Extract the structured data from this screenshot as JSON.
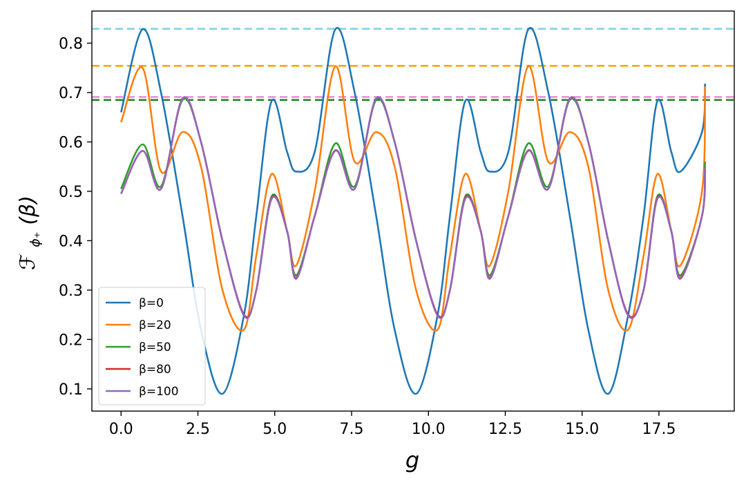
{
  "chart_data": {
    "type": "line",
    "title": "",
    "xlabel": "g",
    "ylabel_parts": {
      "main": "ℱ",
      "sub": "ϕ₊",
      "arg": "(β)"
    },
    "xlim": [
      -0.95,
      19.95
    ],
    "ylim": [
      0.055,
      0.865
    ],
    "xticks": [
      0.0,
      2.5,
      5.0,
      7.5,
      10.0,
      12.5,
      15.0,
      17.5
    ],
    "xtick_labels": [
      "0.0",
      "2.5",
      "5.0",
      "7.5",
      "10.0",
      "12.5",
      "15.0",
      "17.5"
    ],
    "yticks": [
      0.1,
      0.2,
      0.3,
      0.4,
      0.5,
      0.6,
      0.7,
      0.8
    ],
    "ytick_labels": [
      "0.1",
      "0.2",
      "0.3",
      "0.4",
      "0.5",
      "0.6",
      "0.7",
      "0.8"
    ],
    "grid": false,
    "legend_position": "lower-left",
    "x": [
      0.0,
      0.7,
      1.3,
      2.0,
      2.6,
      3.3,
      4.0,
      4.4,
      4.9,
      5.4,
      5.7,
      6.3,
      6.97,
      7.6,
      8.3,
      8.9,
      9.6,
      10.3,
      10.7,
      11.2,
      11.7,
      12.0,
      12.6,
      13.25,
      13.9,
      14.6,
      15.2,
      15.85,
      16.5,
      17.0,
      17.45,
      17.9,
      18.2,
      18.9,
      19.0
    ],
    "series": [
      {
        "name": "β=0",
        "color": "#1f77b4",
        "values": [
          0.66,
          0.828,
          0.7,
          0.45,
          0.22,
          0.09,
          0.25,
          0.45,
          0.683,
          0.58,
          0.54,
          0.58,
          0.828,
          0.7,
          0.45,
          0.22,
          0.09,
          0.25,
          0.45,
          0.683,
          0.58,
          0.54,
          0.58,
          0.828,
          0.7,
          0.45,
          0.22,
          0.09,
          0.25,
          0.45,
          0.683,
          0.58,
          0.54,
          0.62,
          0.718
        ]
      },
      {
        "name": "β=20",
        "color": "#ff7f0e",
        "values": [
          0.64,
          0.75,
          0.54,
          0.62,
          0.55,
          0.3,
          0.22,
          0.37,
          0.535,
          0.42,
          0.35,
          0.5,
          0.753,
          0.56,
          0.62,
          0.55,
          0.3,
          0.22,
          0.37,
          0.535,
          0.42,
          0.35,
          0.5,
          0.753,
          0.56,
          0.62,
          0.55,
          0.3,
          0.22,
          0.37,
          0.535,
          0.42,
          0.35,
          0.5,
          0.712
        ]
      },
      {
        "name": "β=50",
        "color": "#2ca02c",
        "values": [
          0.505,
          0.595,
          0.51,
          0.685,
          0.6,
          0.4,
          0.25,
          0.3,
          0.49,
          0.42,
          0.33,
          0.45,
          0.597,
          0.51,
          0.685,
          0.6,
          0.4,
          0.25,
          0.3,
          0.49,
          0.42,
          0.33,
          0.45,
          0.597,
          0.51,
          0.685,
          0.6,
          0.4,
          0.25,
          0.3,
          0.49,
          0.42,
          0.33,
          0.45,
          0.56
        ]
      },
      {
        "name": "β=80",
        "color": "#d62728",
        "values": [
          0.495,
          0.582,
          0.505,
          0.688,
          0.6,
          0.4,
          0.25,
          0.3,
          0.487,
          0.42,
          0.325,
          0.45,
          0.583,
          0.505,
          0.688,
          0.6,
          0.4,
          0.25,
          0.3,
          0.487,
          0.42,
          0.325,
          0.45,
          0.583,
          0.505,
          0.688,
          0.6,
          0.4,
          0.25,
          0.3,
          0.487,
          0.42,
          0.325,
          0.45,
          0.548
        ]
      },
      {
        "name": "β=100",
        "color": "#9467bd",
        "values": [
          0.495,
          0.582,
          0.505,
          0.688,
          0.6,
          0.4,
          0.248,
          0.3,
          0.485,
          0.42,
          0.323,
          0.45,
          0.582,
          0.505,
          0.688,
          0.6,
          0.4,
          0.248,
          0.3,
          0.485,
          0.42,
          0.323,
          0.45,
          0.582,
          0.505,
          0.688,
          0.6,
          0.4,
          0.248,
          0.3,
          0.485,
          0.42,
          0.323,
          0.45,
          0.548
        ]
      }
    ],
    "reference_lines": [
      {
        "y": 0.829,
        "color": "#7fd3e6",
        "style": "dashed"
      },
      {
        "y": 0.754,
        "color": "#ffa500",
        "style": "dashed"
      },
      {
        "y": 0.691,
        "color": "#e78ad6",
        "style": "dashed"
      },
      {
        "y": 0.685,
        "color": "#228b22",
        "style": "dashed"
      }
    ]
  }
}
